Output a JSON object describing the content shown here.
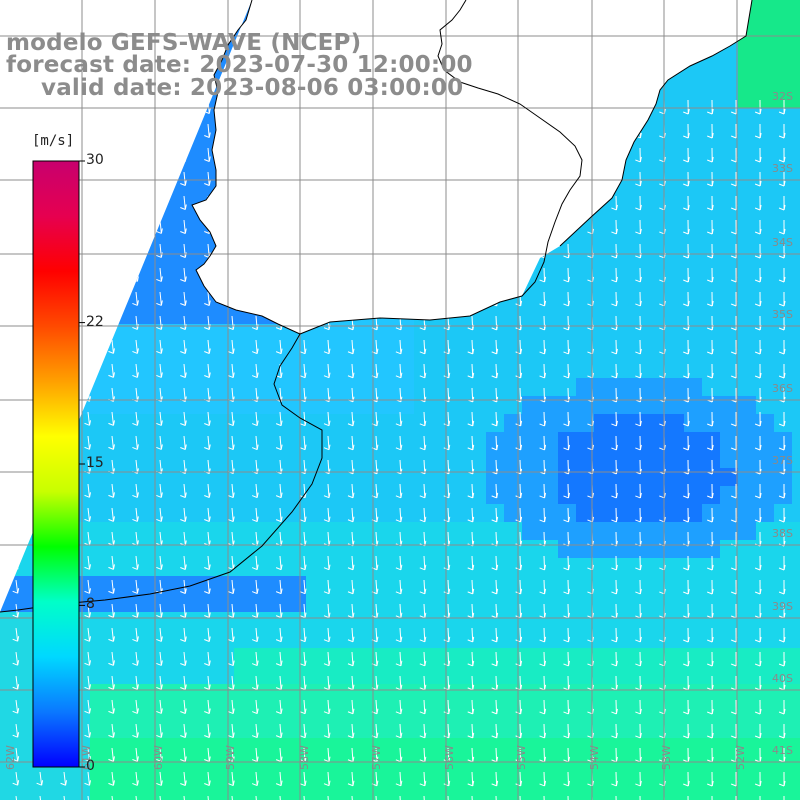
{
  "title": {
    "line1": "modelo GEFS-WAVE (NCEP)",
    "line2": "forecast date: 2023-07-30 12:00:00",
    "line3": "valid date: 2023-08-06 03:00:00"
  },
  "colorbar": {
    "unit": "[m/s]",
    "min": 0,
    "max": 30,
    "ticks": [
      {
        "value": 30,
        "label": "30"
      },
      {
        "value": 22,
        "label": "22"
      },
      {
        "value": 15,
        "label": "15"
      },
      {
        "value": 8,
        "label": "8"
      },
      {
        "value": 0,
        "label": "0"
      }
    ],
    "stops": [
      "#0000ff",
      "#0a78ff",
      "#00d8ff",
      "#00ffc8",
      "#00ff00",
      "#c8ff00",
      "#ffff00",
      "#ffa000",
      "#ff4a00",
      "#ff0000",
      "#e60050",
      "#c8006e"
    ]
  },
  "map": {
    "lat_labels": [
      "32S",
      "33S",
      "34S",
      "35S",
      "36S",
      "37S",
      "38S",
      "39S",
      "40S",
      "41S"
    ],
    "lon_labels": [
      "62W",
      "61W",
      "60W",
      "59W",
      "58W",
      "57W",
      "56W",
      "55W",
      "54W",
      "53W",
      "52W"
    ],
    "land_color": "#ffffff",
    "grid_color": "#8c8c8c",
    "coast_color": "#000000",
    "arrow_color": "#ffffff",
    "variable": "wind speed"
  }
}
